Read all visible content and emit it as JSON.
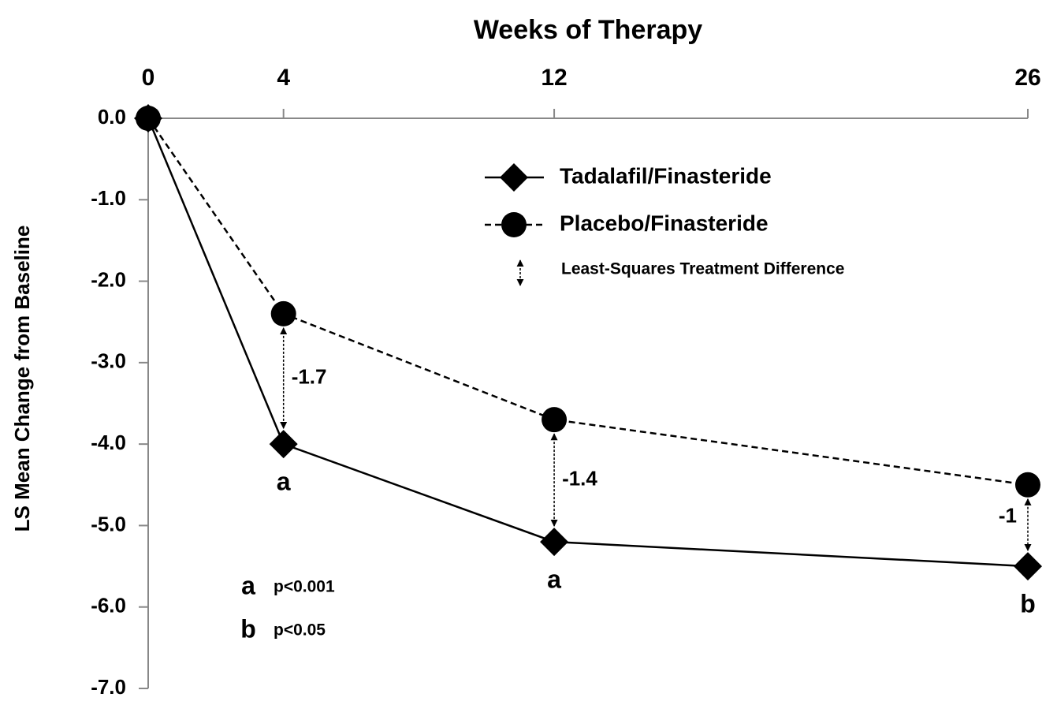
{
  "chart_data": {
    "type": "line",
    "x_label": "Weeks of Therapy",
    "y_label": "LS Mean Change from Baseline",
    "x": [
      0,
      4,
      12,
      26
    ],
    "xlim": [
      0,
      26
    ],
    "xticks": [
      0,
      4,
      12,
      26
    ],
    "ylim": [
      -7,
      0
    ],
    "yticks": [
      {
        "value": 0,
        "label": "0.0"
      },
      {
        "value": -1,
        "label": "-1.0"
      },
      {
        "value": -2,
        "label": "-2.0"
      },
      {
        "value": -3,
        "label": "-3.0"
      },
      {
        "value": -4,
        "label": "-4.0"
      },
      {
        "value": -5,
        "label": "-5.0"
      },
      {
        "value": -6,
        "label": "-6.0"
      },
      {
        "value": -7,
        "label": "-7.0"
      }
    ],
    "series": [
      {
        "name": "Tadalafil/Finasteride",
        "color": "#000000",
        "style": "solid",
        "marker": "diamond",
        "values": [
          0,
          -4.0,
          -5.2,
          -5.5
        ]
      },
      {
        "name": "Placebo/Finasteride",
        "color": "#000000",
        "style": "dashed",
        "marker": "circle",
        "values": [
          0,
          -2.4,
          -3.7,
          -4.5
        ]
      }
    ],
    "difference_legend": "Least-Squares Treatment Difference",
    "differences": [
      {
        "x": 4,
        "value": -1.7
      },
      {
        "x": 12,
        "value": -1.4
      },
      {
        "x": 26,
        "value": -1.0
      }
    ],
    "significance": [
      {
        "x": 4,
        "label": "a"
      },
      {
        "x": 12,
        "label": "a"
      },
      {
        "x": 26,
        "label": "b"
      }
    ],
    "footnotes": [
      {
        "symbol": "a",
        "text": "p<0.001"
      },
      {
        "symbol": "b",
        "text": "p<0.05"
      }
    ]
  }
}
